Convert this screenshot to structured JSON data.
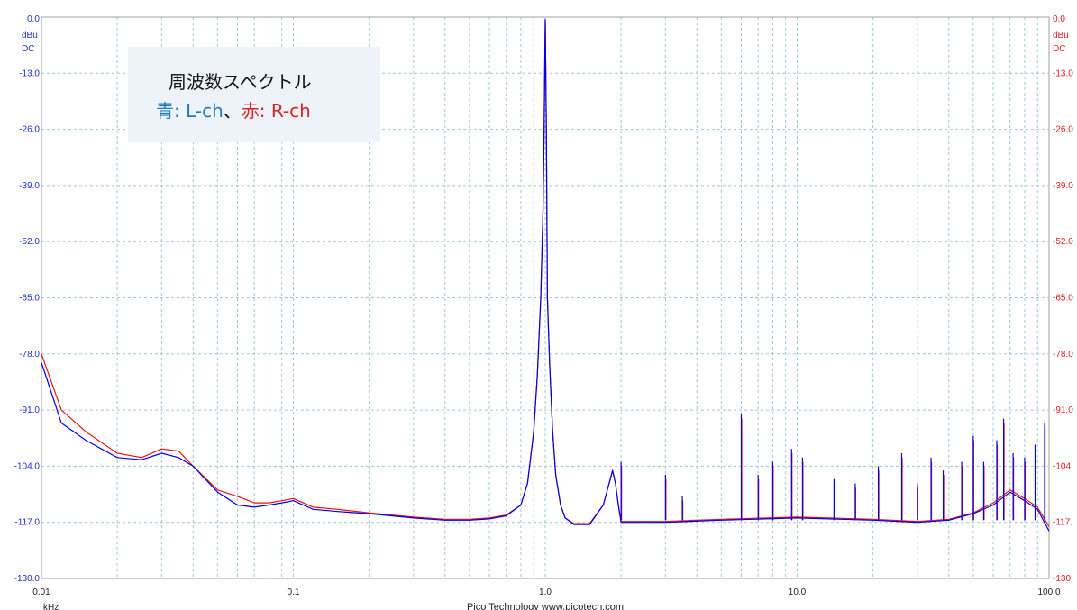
{
  "colors": {
    "left_channel": "#0000ee",
    "right_channel": "#ee1111",
    "grid": "#9cc9d8",
    "left_axis_text": "#1f2fd0",
    "right_axis_text": "#e02020",
    "legend_bg": "#eef3f9",
    "legend_blue": "#1f7bc4",
    "legend_red": "#e02020"
  },
  "legend": {
    "title": "周波数スペクトル",
    "blue_label": "青",
    "blue_text": ": L-ch",
    "separator": "、",
    "red_label": "赤",
    "red_text": ": R-ch"
  },
  "footer": "Pico Technology   www.picotech.com",
  "chart_data": {
    "type": "line",
    "x_scale": "log",
    "xlim": [
      0.01,
      100.0
    ],
    "ylim": [
      -130.0,
      0.0
    ],
    "grid": true,
    "x_unit": "kHz",
    "y_unit_left": [
      "dBu",
      "DC"
    ],
    "y_unit_right": [
      "dBu",
      "DC"
    ],
    "x_ticks": [
      "0.01",
      "0.1",
      "1.0",
      "10.0",
      "100.0"
    ],
    "y_ticks_left": [
      "0.0",
      "-13.0",
      "-26.0",
      "-39.0",
      "-52.0",
      "-65.0",
      "-78.0",
      "-91.0",
      "-104.0",
      "-117.0",
      "-130.0"
    ],
    "y_ticks_right": [
      "0.0",
      "-13.0",
      "-26.0",
      "-39.0",
      "-52.0",
      "-65.0",
      "-78.0",
      "-91.0",
      "-104.",
      "-117.",
      "-130."
    ],
    "series": [
      {
        "name": "L-ch",
        "color": "#0000ee",
        "x": [
          0.01,
          0.012,
          0.015,
          0.02,
          0.025,
          0.03,
          0.035,
          0.04,
          0.05,
          0.06,
          0.07,
          0.08,
          0.09,
          0.1,
          0.12,
          0.15,
          0.2,
          0.3,
          0.4,
          0.5,
          0.6,
          0.7,
          0.8,
          0.85,
          0.9,
          0.93,
          0.96,
          0.98,
          0.99,
          1.0,
          1.01,
          1.02,
          1.04,
          1.07,
          1.1,
          1.15,
          1.2,
          1.3,
          1.5,
          1.7,
          1.85,
          1.9,
          1.95,
          2.0,
          2.2,
          3.0,
          5.0,
          10.0,
          20.0,
          30.0,
          40.0,
          50.0,
          60.0,
          70.0,
          80.0,
          90.0,
          100.0
        ],
        "y": [
          -80,
          -94,
          -98,
          -102,
          -102.5,
          -101,
          -102,
          -104,
          -110,
          -113,
          -113.5,
          -113,
          -112.5,
          -112,
          -114,
          -114.5,
          -115,
          -116,
          -116.5,
          -116.5,
          -116.2,
          -115.5,
          -113,
          -108,
          -96,
          -83,
          -65,
          -45,
          -25,
          -0.5,
          -25,
          -65,
          -80,
          -96,
          -106,
          -113,
          -116,
          -117.5,
          -117.5,
          -113,
          -105,
          -108,
          -113,
          -117,
          -117,
          -117,
          -116.5,
          -116,
          -116.5,
          -117,
          -116.5,
          -115,
          -113,
          -110,
          -112,
          -114,
          -119
        ]
      },
      {
        "name": "R-ch",
        "color": "#ee1111",
        "x": [
          0.01,
          0.012,
          0.015,
          0.02,
          0.025,
          0.03,
          0.035,
          0.04,
          0.05,
          0.06,
          0.07,
          0.08,
          0.09,
          0.1,
          0.12,
          0.15,
          0.2,
          0.3,
          0.4,
          0.5,
          0.6,
          0.7,
          0.8,
          0.85,
          0.9,
          0.93,
          0.96,
          0.98,
          0.99,
          1.0,
          1.01,
          1.02,
          1.04,
          1.07,
          1.1,
          1.15,
          1.2,
          1.3,
          1.5,
          1.7,
          1.85,
          1.9,
          1.95,
          2.0,
          2.2,
          3.0,
          5.0,
          10.0,
          20.0,
          30.0,
          40.0,
          50.0,
          60.0,
          70.0,
          80.0,
          90.0,
          100.0
        ],
        "y": [
          -78,
          -91,
          -96,
          -101,
          -102,
          -100,
          -100.5,
          -104,
          -109.5,
          -111,
          -112.5,
          -112.5,
          -112,
          -111.5,
          -113.5,
          -114,
          -114.8,
          -115.8,
          -116.3,
          -116.3,
          -116,
          -115.3,
          -113,
          -108,
          -96,
          -83,
          -65,
          -45,
          -25,
          -0.8,
          -25,
          -65,
          -80,
          -96,
          -106,
          -113,
          -116,
          -117.3,
          -117.3,
          -113,
          -105,
          -108,
          -113,
          -116.8,
          -116.8,
          -116.8,
          -116.3,
          -115.8,
          -116.3,
          -116.8,
          -116.3,
          -114.8,
          -112.5,
          -109.5,
          -111.5,
          -113.5,
          -118
        ]
      }
    ]
  }
}
